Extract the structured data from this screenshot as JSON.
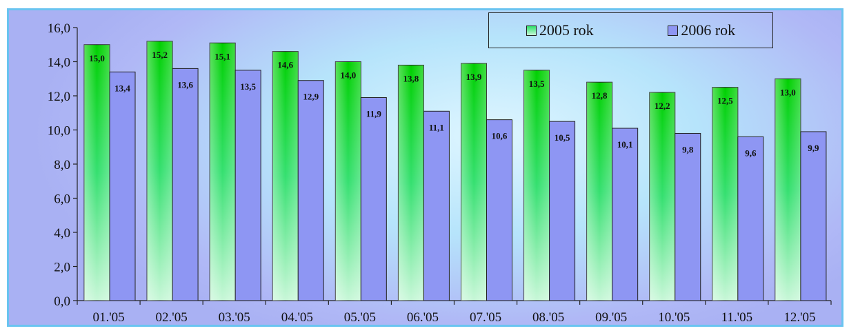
{
  "chart_data": {
    "type": "bar",
    "title": "",
    "xlabel": "",
    "ylabel": "",
    "categories": [
      "01.'05",
      "02.'05",
      "03.'05",
      "04.'05",
      "05.'05",
      "06.'05",
      "07.'05",
      "08.'05",
      "09.'05",
      "10.'05",
      "11.'05",
      "12.'05"
    ],
    "series": [
      {
        "name": "2005 rok",
        "values": [
          15.0,
          15.2,
          15.1,
          14.6,
          14.0,
          13.8,
          13.9,
          13.5,
          12.8,
          12.2,
          12.5,
          13.0
        ],
        "labels": [
          "15,0",
          "15,2",
          "15,1",
          "14,6",
          "14,0",
          "13,8",
          "13,9",
          "13,5",
          "12,8",
          "12,2",
          "12,5",
          "13,0"
        ]
      },
      {
        "name": "2006 rok",
        "values": [
          13.4,
          13.6,
          13.5,
          12.9,
          11.9,
          11.1,
          10.6,
          10.5,
          10.1,
          9.8,
          9.6,
          9.9
        ],
        "labels": [
          "13,4",
          "13,6",
          "13,5",
          "12,9",
          "11,9",
          "11,1",
          "10,6",
          "10,5",
          "10,1",
          "9,8",
          "9,6",
          "9,9"
        ]
      }
    ],
    "ylim": [
      0,
      16
    ],
    "yticks": [
      "0,0",
      "2,0",
      "4,0",
      "6,0",
      "8,0",
      "10,0",
      "12,0",
      "14,0",
      "16,0"
    ],
    "legend_position": "top-right",
    "grid": false,
    "colors": {
      "series1_top": "#00d400",
      "series1_bottom": "#b9f5c9",
      "series2": "#8e96f3",
      "frame_border": "#6ac4f0"
    }
  }
}
